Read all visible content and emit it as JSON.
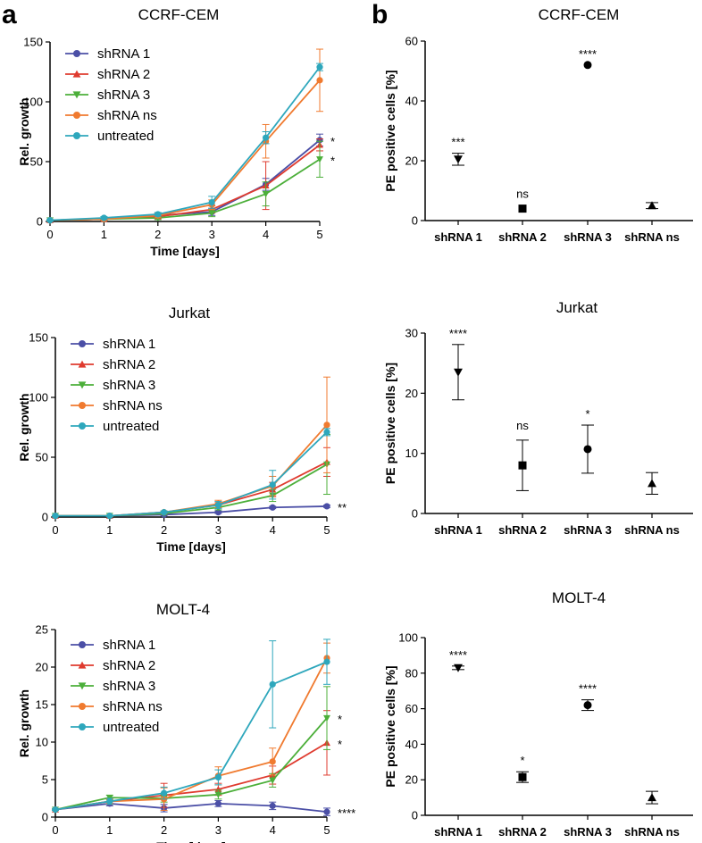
{
  "panel_letters": [
    "a",
    "b"
  ],
  "chart_data": [
    {
      "type": "line",
      "panel": "a",
      "title": "CCRF-CEM",
      "xlabel": "Time [days]",
      "ylabel": "Rel. growth",
      "x": [
        0,
        1,
        2,
        3,
        4,
        5
      ],
      "xlim": [
        0,
        5
      ],
      "ylim": [
        0,
        150
      ],
      "xticks": [
        "0",
        "1",
        "2",
        "3",
        "4",
        "5"
      ],
      "yticks": [
        0,
        50,
        100,
        150
      ],
      "legend": "top-left",
      "series": [
        {
          "name": "shRNA 1",
          "color": "#4b4fa6",
          "marker": "circle",
          "values": [
            1,
            2,
            5,
            8,
            31,
            68
          ],
          "errors": [
            0.5,
            1,
            1.5,
            3,
            5,
            5
          ],
          "annotation": "*"
        },
        {
          "name": "shRNA 2",
          "color": "#df3b2f",
          "marker": "triangle-up",
          "values": [
            1,
            2,
            4,
            10,
            30,
            64
          ],
          "errors": [
            0.5,
            1,
            1.5,
            3,
            20,
            5
          ],
          "annotation": ""
        },
        {
          "name": "shRNA 3",
          "color": "#4caf3a",
          "marker": "triangle-down",
          "values": [
            1,
            2,
            3,
            7,
            23,
            52
          ],
          "errors": [
            0.5,
            1,
            1.5,
            3,
            10,
            15
          ],
          "annotation": "*"
        },
        {
          "name": "shRNA ns",
          "color": "#f07a2f",
          "marker": "circle",
          "values": [
            1,
            2,
            5,
            14,
            67,
            118
          ],
          "errors": [
            0.5,
            1,
            2,
            4,
            14,
            26
          ],
          "annotation": ""
        },
        {
          "name": "untreated",
          "color": "#2ea7bc",
          "marker": "circle",
          "values": [
            1,
            3,
            6,
            16,
            70,
            129
          ],
          "errors": [
            0.5,
            1,
            1.5,
            5,
            5,
            3
          ],
          "annotation": ""
        }
      ]
    },
    {
      "type": "line",
      "panel": "a",
      "title": "Jurkat",
      "xlabel": "Time [days]",
      "ylabel": "Rel. growth",
      "x": [
        0,
        1,
        2,
        3,
        4,
        5
      ],
      "xlim": [
        0,
        5
      ],
      "ylim": [
        0,
        150
      ],
      "xticks": [
        "0",
        "1",
        "2",
        "3",
        "4",
        "5"
      ],
      "yticks": [
        0,
        50,
        100,
        150
      ],
      "legend": "top-left",
      "series": [
        {
          "name": "shRNA 1",
          "color": "#4b4fa6",
          "marker": "circle",
          "values": [
            1,
            1,
            2,
            4,
            8,
            9
          ],
          "errors": [
            0.3,
            0.5,
            0.8,
            1,
            1,
            1
          ],
          "annotation": "**"
        },
        {
          "name": "shRNA 2",
          "color": "#df3b2f",
          "marker": "triangle-up",
          "values": [
            1,
            1,
            4,
            10,
            23,
            46
          ],
          "errors": [
            0.3,
            0.5,
            1,
            2,
            6,
            12
          ],
          "annotation": ""
        },
        {
          "name": "shRNA 3",
          "color": "#4caf3a",
          "marker": "triangle-down",
          "values": [
            1,
            1,
            3,
            8,
            18,
            44
          ],
          "errors": [
            0.3,
            0.5,
            1,
            2,
            5,
            25
          ],
          "annotation": ""
        },
        {
          "name": "shRNA ns",
          "color": "#f07a2f",
          "marker": "circle",
          "values": [
            1,
            1,
            4,
            11,
            26,
            77
          ],
          "errors": [
            0.3,
            0.5,
            1,
            3,
            8,
            40
          ],
          "annotation": ""
        },
        {
          "name": "untreated",
          "color": "#2ea7bc",
          "marker": "circle",
          "values": [
            1,
            1,
            4,
            10,
            27,
            71
          ],
          "errors": [
            0.3,
            0.5,
            1,
            3,
            12,
            3
          ],
          "annotation": ""
        }
      ]
    },
    {
      "type": "line",
      "panel": "a",
      "title": "MOLT-4",
      "xlabel": "Time [days]",
      "ylabel": "Rel. growth",
      "x": [
        0,
        1,
        2,
        3,
        4,
        5
      ],
      "xlim": [
        0,
        5
      ],
      "ylim": [
        0,
        25
      ],
      "xticks": [
        "0",
        "1",
        "2",
        "3",
        "4",
        "5"
      ],
      "yticks": [
        0,
        5,
        10,
        15,
        20,
        25
      ],
      "legend": "top-left",
      "series": [
        {
          "name": "shRNA 1",
          "color": "#4b4fa6",
          "marker": "circle",
          "values": [
            1,
            1.8,
            1.2,
            1.8,
            1.5,
            0.7
          ],
          "errors": [
            0.1,
            0.3,
            0.5,
            0.4,
            0.5,
            0.5
          ],
          "annotation": "****"
        },
        {
          "name": "shRNA 2",
          "color": "#df3b2f",
          "marker": "triangle-up",
          "values": [
            1,
            2.1,
            2.9,
            3.7,
            5.6,
            9.9
          ],
          "errors": [
            0.1,
            0.4,
            1.6,
            0.8,
            1.2,
            4.3
          ],
          "annotation": "*"
        },
        {
          "name": "shRNA 3",
          "color": "#4caf3a",
          "marker": "triangle-down",
          "values": [
            1,
            2.6,
            2.5,
            3.0,
            4.9,
            13.2
          ],
          "errors": [
            0.1,
            0.3,
            0.5,
            0.6,
            0.9,
            4.2
          ],
          "annotation": "*"
        },
        {
          "name": "shRNA ns",
          "color": "#f07a2f",
          "marker": "circle",
          "values": [
            1,
            2.1,
            2.4,
            5.5,
            7.4,
            21.2
          ],
          "errors": [
            0.1,
            0.3,
            1.5,
            1.2,
            1.8,
            2.0
          ],
          "annotation": ""
        },
        {
          "name": "untreated",
          "color": "#2ea7bc",
          "marker": "circle",
          "values": [
            1,
            2.1,
            3.2,
            5.3,
            17.7,
            20.7
          ],
          "errors": [
            0.1,
            0.4,
            0.8,
            1.0,
            5.8,
            3.0
          ],
          "annotation": ""
        }
      ]
    },
    {
      "type": "scatter",
      "panel": "b",
      "title": "CCRF-CEM",
      "xlabel": "",
      "ylabel": "PE positive cells [%]",
      "categories": [
        "shRNA 1",
        "shRNA 2",
        "shRNA 3",
        "shRNA ns"
      ],
      "markers": [
        "triangle-down",
        "square",
        "circle",
        "triangle-up"
      ],
      "values": [
        20.5,
        4,
        52,
        5
      ],
      "errors": [
        2,
        0,
        0,
        1
      ],
      "annotations": [
        "***",
        "ns",
        "****",
        ""
      ],
      "ylim": [
        0,
        60
      ],
      "yticks": [
        0,
        20,
        40,
        60
      ]
    },
    {
      "type": "scatter",
      "panel": "b",
      "title": "Jurkat",
      "xlabel": "",
      "ylabel": "PE positive cells [%]",
      "categories": [
        "shRNA 1",
        "shRNA 2",
        "shRNA 3",
        "shRNA ns"
      ],
      "markers": [
        "triangle-down",
        "square",
        "circle",
        "triangle-up"
      ],
      "values": [
        23.5,
        8,
        10.7,
        5
      ],
      "errors": [
        4.6,
        4.2,
        4,
        1.8
      ],
      "annotations": [
        "****",
        "ns",
        "*",
        ""
      ],
      "ylim": [
        0,
        30
      ],
      "yticks": [
        0,
        10,
        20,
        30
      ]
    },
    {
      "type": "scatter",
      "panel": "b",
      "title": "MOLT-4",
      "xlabel": "",
      "ylabel": "PE positive cells [%]",
      "categories": [
        "shRNA 1",
        "shRNA 2",
        "shRNA 3",
        "shRNA ns"
      ],
      "markers": [
        "triangle-down",
        "square",
        "circle",
        "triangle-up"
      ],
      "values": [
        83,
        21.5,
        62,
        10
      ],
      "errors": [
        1,
        3,
        3,
        3.5
      ],
      "annotations": [
        "****",
        "*",
        "****",
        ""
      ],
      "ylim": [
        0,
        100
      ],
      "yticks": [
        0,
        20,
        40,
        60,
        80,
        100
      ]
    }
  ]
}
